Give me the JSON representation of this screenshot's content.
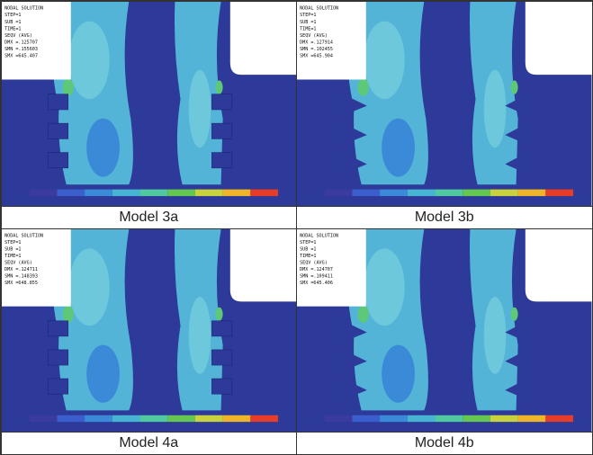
{
  "panels": [
    {
      "caption": "Model 3a",
      "legend": [
        "NODAL SOLUTION",
        "STEP=1",
        "SUB =1",
        "TIME=1",
        "SEQV (AVG)",
        "DMX =.125707",
        "SMN =.155603",
        "SMX =645.407"
      ]
    },
    {
      "caption": "Model 3b",
      "legend": [
        "NODAL SOLUTION",
        "STEP=1",
        "SUB =1",
        "TIME=1",
        "SEQV (AVG)",
        "DMX =.127914",
        "SMN =.102455",
        "SMX =645.904"
      ]
    },
    {
      "caption": "Model 4a",
      "legend": [
        "NODAL SOLUTION",
        "STEP=1",
        "SUB =1",
        "TIME=1",
        "SEQV (AVG)",
        "DMX =.124711",
        "SMN =.148393",
        "SMX =648.855"
      ]
    },
    {
      "caption": "Model 4b",
      "legend": [
        "NODAL SOLUTION",
        "STEP=1",
        "SUB =1",
        "TIME=1",
        "SEQV (AVG)",
        "DMX =.124707",
        "SMN =.109411",
        "SMX =645.406"
      ]
    }
  ]
}
